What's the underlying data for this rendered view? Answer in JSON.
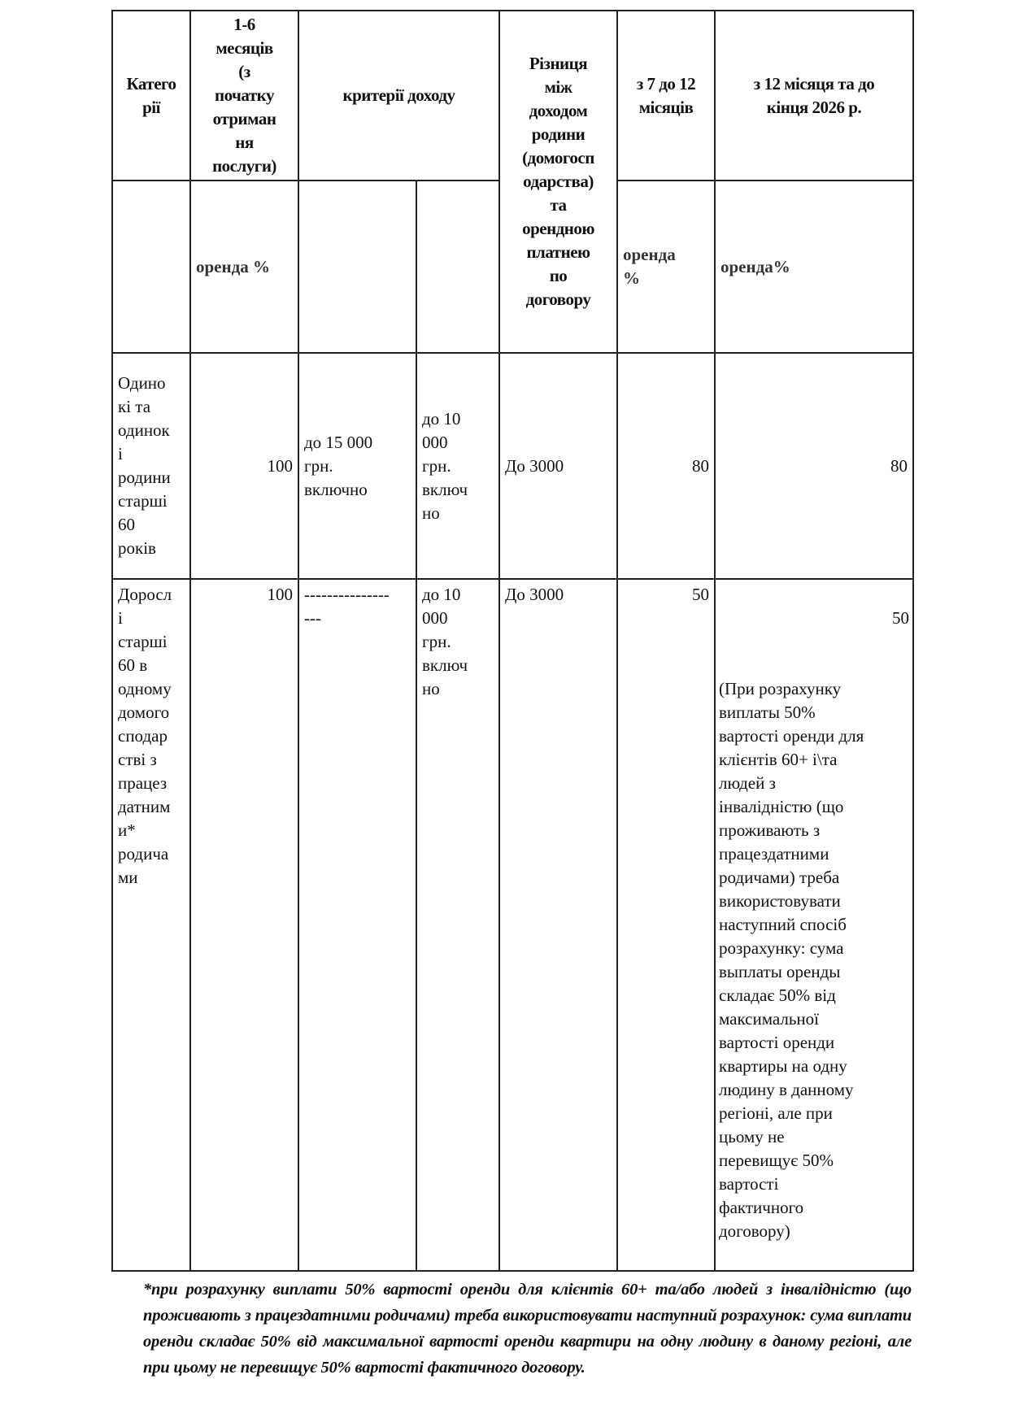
{
  "table": {
    "headers": {
      "category": "Катего\nрії",
      "months_1_6": "1-6\nмесяців\n(з\nпочатку\nотриман\nня\nпослуги)",
      "income_criteria": "критерії доходу",
      "difference": "Різниця\nміж\nдоходом\nродини\n(домогосп\nодарства)\nта\nорендною\nплатнею\nпо\nдоговору",
      "months_7_12": "з 7 до 12\nмісяців",
      "month_12_to_2026": "з 12 місяця та до\nкінця 2026 р.",
      "rent_pct_1": "оренда %",
      "rent_pct_2": "оренда\n%",
      "rent_pct_3": "оренда%"
    },
    "rows": [
      {
        "category": "Одино\nкі та\nодинок\nі\nродини\nстарші\n60\nроків",
        "months_1_6": "100",
        "income_1": "до 15 000\nгрн.\nвключно",
        "income_2": "до 10\n000\nгрн.\nвключ\nно",
        "difference": "До 3000",
        "months_7_12": "80",
        "month_12_to_2026": "80",
        "note": ""
      },
      {
        "category": "Доросл\nі\nстарші\n60 в\nодному\nдомого\nсподар\nстві з\nпрацез\nдатним\nи*\nродича\nми",
        "months_1_6": "100",
        "income_1": "---------------\n---",
        "income_2": "до 10\n000\nгрн.\nвключ\nно",
        "difference": "До 3000",
        "months_7_12": "50",
        "month_12_to_2026": "50",
        "note": "(При розрахунку\nвиплаты 50%\nвартості оренди для\nклієнтів 60+  і\\та\nлюдей з\nінвалідністю (що\nпроживають з\nпрацездатними\nродичами) треба\nвикористовувати\nнаступний спосіб\nрозрахунку: сума\nвыплаты оренды\nскладає 50% від\nмаксимальної\nвартості оренди\nквартиры на одну\nлюдину в данному\nрегіоні, але при\nцьому не\nперевищує 50%\nвартості\nфактичного\nдоговору)"
      }
    ]
  },
  "footnote": "*при розрахунку виплати 50% вартості оренди для клієнтів 60+ та/або людей з інвалідністю (що проживають з працездатними родичами) треба використовувати наступний розрахунок: сума виплати оренди складає 50% від максимальної вартості оренди квартири на одну людину в даному регіоні, але при цьому не перевищує 50% вартості фактичного договору."
}
